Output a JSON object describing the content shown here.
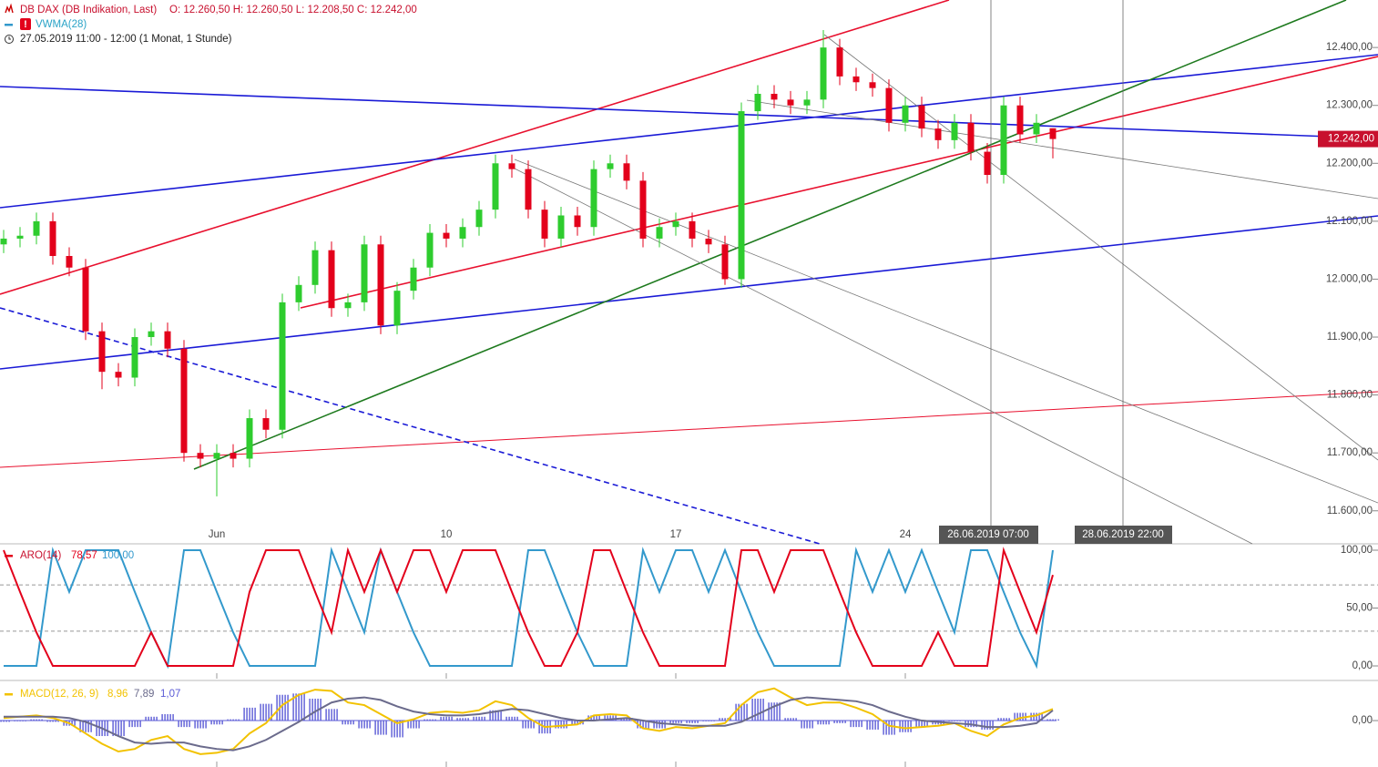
{
  "header": {
    "title": "DB DAX (DB Indikation, Last)",
    "ohlc": "O: 12.260,50  H: 12.260,50  L: 12.208,50  C: 12.242,00",
    "indicator": "VWMA(28)",
    "period": "27.05.2019 11:00 - 12:00  (1 Monat, 1 Stunde)"
  },
  "price_label": "12.242,00",
  "markers": [
    "26.06.2019 07:00",
    "28.06.2019 22:00"
  ],
  "chart_data": [
    {
      "type": "candlestick",
      "categories": [
        null,
        null,
        null,
        null,
        null,
        null,
        null,
        null,
        null,
        null,
        null,
        null,
        null,
        "Jun",
        null,
        null,
        null,
        null,
        null,
        null,
        null,
        null,
        null,
        null,
        null,
        null,
        null,
        "10",
        null,
        null,
        null,
        null,
        null,
        null,
        null,
        null,
        null,
        null,
        null,
        null,
        null,
        "17",
        null,
        null,
        null,
        null,
        null,
        null,
        null,
        null,
        null,
        null,
        null,
        null,
        null,
        "24",
        null,
        null,
        null,
        null,
        null,
        null,
        null,
        null,
        null
      ],
      "open": [
        12060,
        12070,
        12075,
        12100,
        12040,
        12020,
        11910,
        11840,
        11830,
        11900,
        11910,
        11880,
        11700,
        11690,
        11700,
        11690,
        11760,
        11740,
        11960,
        11990,
        12050,
        11950,
        11960,
        12060,
        11920,
        11980,
        12020,
        12080,
        12070,
        12090,
        12120,
        12200,
        12190,
        12120,
        12070,
        12110,
        12090,
        12190,
        12200,
        12170,
        12070,
        12090,
        12100,
        12070,
        12060,
        12000,
        12290,
        12320,
        12310,
        12300,
        12310,
        12400,
        12350,
        12340,
        12330,
        12270,
        12300,
        12260,
        12240,
        12270,
        12220,
        12180,
        12300,
        12250,
        12260.5
      ],
      "high": [
        12085,
        12090,
        12115,
        12115,
        12055,
        12035,
        11925,
        11855,
        11915,
        11925,
        11925,
        11895,
        11715,
        11715,
        11715,
        11775,
        11775,
        11975,
        12005,
        12065,
        12065,
        11975,
        12075,
        12075,
        11995,
        12035,
        12095,
        12095,
        12105,
        12135,
        12215,
        12215,
        12205,
        12135,
        12125,
        12125,
        12205,
        12215,
        12215,
        12185,
        12105,
        12115,
        12115,
        12085,
        12075,
        12305,
        12335,
        12335,
        12325,
        12325,
        12430,
        12415,
        12365,
        12355,
        12345,
        12315,
        12315,
        12275,
        12285,
        12285,
        12235,
        12315,
        12315,
        12285,
        12260.5
      ],
      "low": [
        12045,
        12055,
        12060,
        12025,
        12005,
        11895,
        11810,
        11815,
        11815,
        11885,
        11865,
        11685,
        11675,
        11625,
        11675,
        11675,
        11725,
        11725,
        11945,
        11975,
        11935,
        11935,
        11945,
        11905,
        11905,
        11965,
        12005,
        12055,
        12055,
        12075,
        12105,
        12175,
        12105,
        12055,
        12055,
        12075,
        12075,
        12175,
        12155,
        12055,
        12055,
        12075,
        12055,
        12045,
        11990,
        11985,
        12275,
        12295,
        12285,
        12285,
        12295,
        12335,
        12325,
        12315,
        12255,
        12255,
        12245,
        12225,
        12225,
        12205,
        12165,
        12165,
        12235,
        12235,
        12208.5
      ],
      "close": [
        12070,
        12075,
        12100,
        12040,
        12020,
        11910,
        11840,
        11830,
        11900,
        11910,
        11880,
        11700,
        11690,
        11700,
        11690,
        11760,
        11740,
        11960,
        11990,
        12050,
        11950,
        11960,
        12060,
        11920,
        11980,
        12020,
        12080,
        12070,
        12090,
        12120,
        12200,
        12190,
        12120,
        12070,
        12110,
        12090,
        12190,
        12200,
        12170,
        12070,
        12090,
        12100,
        12070,
        12060,
        12000,
        12290,
        12320,
        12310,
        12300,
        12310,
        12400,
        12350,
        12340,
        12330,
        12270,
        12300,
        12260,
        12240,
        12270,
        12220,
        12180,
        12300,
        12250,
        12270,
        12242
      ],
      "up_color": "#2ecc2e",
      "down_color": "#e3001b",
      "ylim": [
        11543,
        12482
      ],
      "yticks": [
        {
          "value": 11600,
          "label": "11.600,00"
        },
        {
          "value": 11700,
          "label": "11.700,00"
        },
        {
          "value": 11800,
          "label": "11.800,00"
        },
        {
          "value": 11900,
          "label": "11.900,00"
        },
        {
          "value": 12000,
          "label": "12.000,00"
        },
        {
          "value": 12100,
          "label": "12.100,00"
        },
        {
          "value": 12200,
          "label": "12.200,00"
        },
        {
          "value": 12300,
          "label": "12.300,00"
        },
        {
          "value": 12400,
          "label": "12.400,00"
        }
      ]
    },
    {
      "type": "line",
      "title": "ARO(14)",
      "series": [
        {
          "name": "78,57",
          "color": "#e3001b",
          "values": [
            100,
            64,
            29,
            0,
            0,
            0,
            0,
            0,
            0,
            29,
            0,
            0,
            0,
            0,
            0,
            64,
            100,
            100,
            100,
            64,
            29,
            100,
            64,
            100,
            64,
            100,
            100,
            64,
            100,
            100,
            100,
            64,
            29,
            0,
            0,
            29,
            100,
            100,
            64,
            29,
            0,
            0,
            0,
            0,
            0,
            100,
            100,
            64,
            100,
            100,
            100,
            64,
            29,
            0,
            0,
            0,
            0,
            29,
            0,
            0,
            0,
            100,
            64,
            29,
            78.57
          ]
        },
        {
          "name": "100,00",
          "color": "#3399cc",
          "values": [
            0,
            0,
            0,
            100,
            64,
            100,
            100,
            100,
            64,
            29,
            0,
            100,
            100,
            64,
            29,
            0,
            0,
            0,
            0,
            0,
            100,
            64,
            29,
            100,
            64,
            29,
            0,
            0,
            0,
            0,
            0,
            0,
            100,
            100,
            64,
            29,
            0,
            0,
            0,
            100,
            64,
            100,
            100,
            64,
            100,
            64,
            29,
            0,
            0,
            0,
            0,
            0,
            100,
            64,
            100,
            64,
            100,
            64,
            29,
            100,
            100,
            64,
            29,
            0,
            100
          ]
        }
      ],
      "levels": [
        30,
        70
      ],
      "ylim": [
        -11,
        105.5
      ],
      "yticks": [
        {
          "value": 0,
          "label": "0,00"
        },
        {
          "value": 50,
          "label": "50,00"
        },
        {
          "value": 100,
          "label": "100,00"
        }
      ]
    },
    {
      "type": "macd",
      "title": "MACD(12, 26, 9)",
      "series": [
        {
          "name": "8,96",
          "color": "#f2c200",
          "values": [
            2,
            3,
            4,
            2,
            -2,
            -10,
            -18,
            -24,
            -22,
            -15,
            -12,
            -22,
            -26,
            -25,
            -22,
            -10,
            -2,
            12,
            20,
            24,
            23,
            14,
            12,
            5,
            -2,
            1,
            6,
            7,
            6,
            8,
            15,
            12,
            2,
            -5,
            -4,
            -3,
            4,
            5,
            4,
            -6,
            -8,
            -5,
            -6,
            -4,
            -2,
            12,
            22,
            25,
            18,
            12,
            14,
            14,
            10,
            5,
            -4,
            -6,
            -5,
            -4,
            -2,
            -8,
            -12,
            -3,
            2,
            4,
            8.96
          ]
        },
        {
          "name": "7,89",
          "color": "#6b6b8c",
          "values": [
            3,
            3,
            3,
            3,
            2,
            -1,
            -6,
            -12,
            -17,
            -18,
            -17,
            -17,
            -20,
            -22,
            -23,
            -20,
            -15,
            -8,
            -1,
            7,
            14,
            17,
            18,
            16,
            11,
            7,
            5,
            4,
            4,
            5,
            7,
            9,
            8,
            5,
            2,
            0,
            0,
            1,
            2,
            0,
            -2,
            -3,
            -4,
            -4,
            -4,
            -1,
            5,
            11,
            16,
            18,
            17,
            16,
            15,
            12,
            7,
            3,
            0,
            -1,
            -2,
            -3,
            -5,
            -5,
            -4,
            -2,
            7.89
          ]
        },
        {
          "name": "1,07",
          "color": "#5a5ad6",
          "values": [
            -1,
            0,
            1,
            -1,
            -4,
            -9,
            -12,
            -12,
            -5,
            3,
            5,
            -5,
            -6,
            -3,
            1,
            10,
            13,
            20,
            21,
            17,
            9,
            -3,
            -6,
            -11,
            -13,
            -6,
            1,
            3,
            2,
            3,
            8,
            3,
            -6,
            -10,
            -6,
            -3,
            4,
            4,
            2,
            -6,
            -6,
            -2,
            -2,
            0,
            2,
            13,
            17,
            14,
            2,
            -6,
            -3,
            -2,
            -5,
            -7,
            -11,
            -9,
            -5,
            -3,
            0,
            -5,
            -7,
            2,
            6,
            6,
            1.07
          ]
        }
      ],
      "ylim": [
        -36,
        29
      ],
      "yticks": [
        {
          "value": 0,
          "label": "0,00"
        }
      ]
    }
  ]
}
